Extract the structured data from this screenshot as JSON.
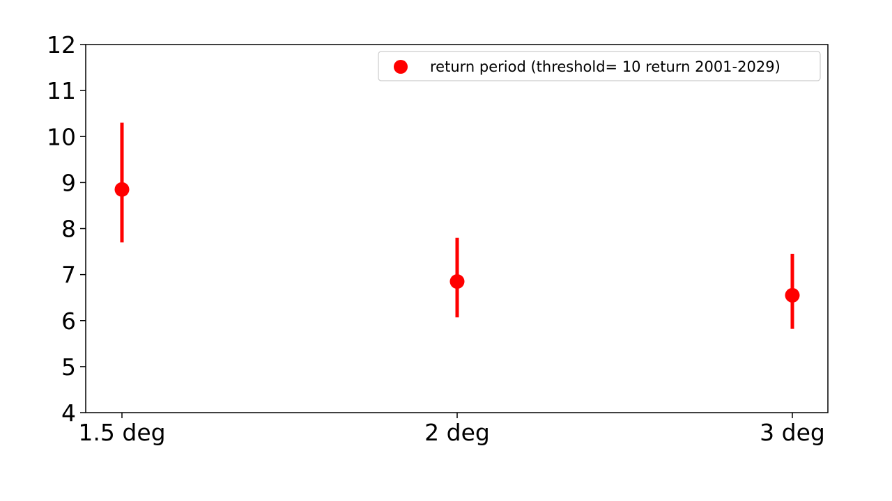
{
  "chart_data": {
    "type": "scatter",
    "categories": [
      "1.5 deg",
      "2 deg",
      "3 deg"
    ],
    "series": [
      {
        "name": "return period (threshold= 10 return 2001-2029)",
        "color": "#ff0000",
        "values": [
          8.85,
          6.85,
          6.55
        ],
        "error_low": [
          7.7,
          6.07,
          5.82
        ],
        "error_high": [
          10.3,
          7.8,
          7.45
        ]
      }
    ],
    "yticks": [
      "4",
      "5",
      "6",
      "7",
      "8",
      "9",
      "10",
      "11",
      "12"
    ],
    "ylim": [
      4,
      12
    ],
    "grid": false,
    "legend_position": "top-right"
  }
}
